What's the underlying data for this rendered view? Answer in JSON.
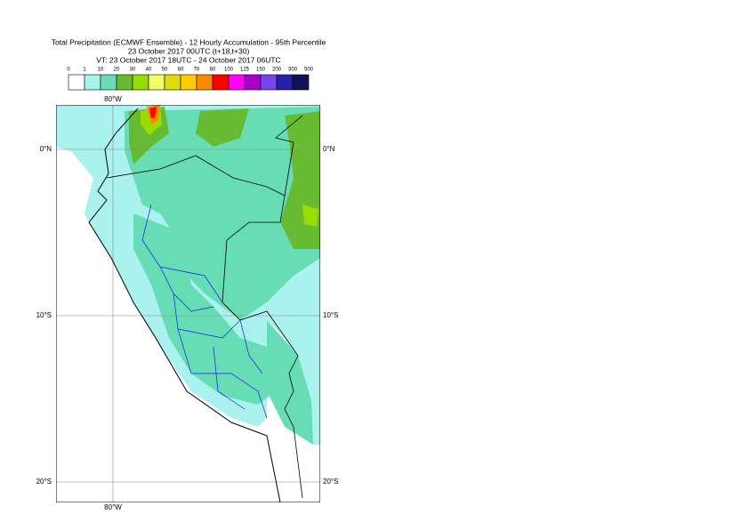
{
  "header": {
    "title": "Total Precipitation (ECMWF Ensemble) - 12 Hourly Accumulation - 95th Percentile",
    "base_time": "23 October 2017 00UTC (t+18,t+30)",
    "valid_time": "VT: 23 October 2017 18UTC - 24 October 2017 06UTC"
  },
  "legend": {
    "labels": [
      "0",
      "1",
      "10",
      "20",
      "30",
      "40",
      "50",
      "60",
      "70",
      "80",
      "100",
      "125",
      "150",
      "200",
      "300",
      "500"
    ],
    "colors": [
      "#ffffff",
      "#aaf2ee",
      "#66ddb4",
      "#66bb33",
      "#99dd00",
      "#eeff66",
      "#dddd11",
      "#ffcc00",
      "#ff8800",
      "#ff0000",
      "#ff00ff",
      "#aa00cc",
      "#7744ee",
      "#2222aa",
      "#111155"
    ]
  },
  "map": {
    "longitudes": [
      {
        "label": "80°W"
      }
    ],
    "latitudes": [
      {
        "label": "0°N"
      },
      {
        "label": "10°S"
      },
      {
        "label": "20°S"
      }
    ]
  }
}
